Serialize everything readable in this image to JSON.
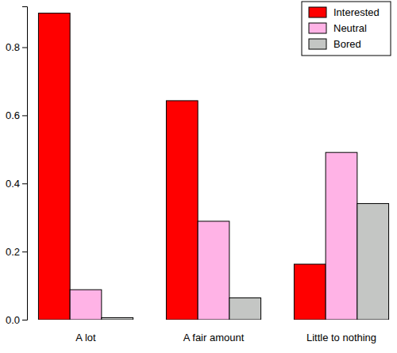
{
  "chart_data": {
    "type": "bar",
    "categories": [
      "A lot",
      "A fair amount",
      "Little to nothing"
    ],
    "series": [
      {
        "name": "Interested",
        "color": "#ff0000",
        "values": [
          0.9,
          0.643,
          0.163
        ]
      },
      {
        "name": "Neutral",
        "color": "#ffb3e6",
        "values": [
          0.088,
          0.289,
          0.491
        ]
      },
      {
        "name": "Bored",
        "color": "#c4c6c4",
        "values": [
          0.006,
          0.064,
          0.341
        ]
      }
    ],
    "ylim": [
      0,
      0.92
    ],
    "yticks": [
      {
        "value": 0,
        "label": "0.0"
      },
      0.2,
      0.4,
      0.6,
      0.8
    ],
    "legend": "topright"
  }
}
